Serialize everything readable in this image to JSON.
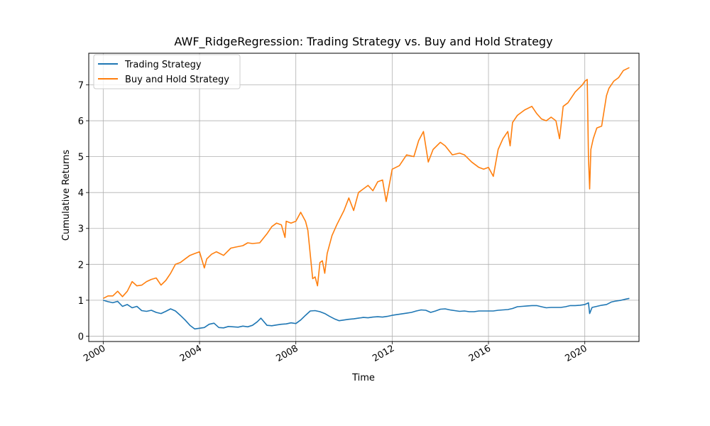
{
  "chart_data": {
    "type": "line",
    "title": "AWF_RidgeRegression: Trading Strategy vs. Buy and Hold Strategy",
    "xlabel": "Time",
    "ylabel": "Cumulative Returns",
    "xlim": [
      1999.4,
      2022.25
    ],
    "ylim": [
      -0.15,
      7.88
    ],
    "grid": true,
    "legend_position": "top-left",
    "x_ticks": [
      2000,
      2004,
      2008,
      2012,
      2016,
      2020
    ],
    "x_tick_labels": [
      "2000",
      "2004",
      "2008",
      "2012",
      "2016",
      "2020"
    ],
    "y_ticks": [
      0,
      1,
      2,
      3,
      4,
      5,
      6,
      7
    ],
    "y_tick_labels": [
      "0",
      "1",
      "2",
      "3",
      "4",
      "5",
      "6",
      "7"
    ],
    "series": [
      {
        "name": "Trading Strategy",
        "color": "#1f77b4",
        "x": [
          2000.0,
          2000.2,
          2000.4,
          2000.6,
          2000.8,
          2001.0,
          2001.2,
          2001.4,
          2001.6,
          2001.8,
          2002.0,
          2002.2,
          2002.4,
          2002.6,
          2002.8,
          2003.0,
          2003.2,
          2003.4,
          2003.6,
          2003.8,
          2004.0,
          2004.2,
          2004.4,
          2004.6,
          2004.8,
          2005.0,
          2005.2,
          2005.4,
          2005.6,
          2005.8,
          2006.0,
          2006.2,
          2006.4,
          2006.55,
          2006.8,
          2007.0,
          2007.2,
          2007.4,
          2007.6,
          2007.8,
          2008.0,
          2008.2,
          2008.4,
          2008.6,
          2008.8,
          2009.0,
          2009.2,
          2009.4,
          2009.6,
          2009.8,
          2010.0,
          2010.2,
          2010.4,
          2010.6,
          2010.8,
          2011.0,
          2011.2,
          2011.4,
          2011.6,
          2011.8,
          2012.0,
          2012.2,
          2012.4,
          2012.6,
          2012.8,
          2013.0,
          2013.2,
          2013.4,
          2013.6,
          2013.8,
          2014.0,
          2014.2,
          2014.4,
          2014.6,
          2014.8,
          2015.0,
          2015.2,
          2015.4,
          2015.6,
          2015.8,
          2016.0,
          2016.2,
          2016.4,
          2016.6,
          2016.8,
          2017.0,
          2017.2,
          2017.4,
          2017.6,
          2017.8,
          2018.0,
          2018.2,
          2018.4,
          2018.6,
          2018.8,
          2019.0,
          2019.2,
          2019.4,
          2019.6,
          2019.8,
          2020.0,
          2020.1,
          2020.15,
          2020.2,
          2020.3,
          2020.5,
          2020.7,
          2020.9,
          2021.1,
          2021.3,
          2021.5,
          2021.7,
          2021.85
        ],
        "values": [
          1.0,
          0.96,
          0.93,
          0.97,
          0.83,
          0.88,
          0.79,
          0.83,
          0.71,
          0.69,
          0.72,
          0.66,
          0.63,
          0.69,
          0.76,
          0.7,
          0.58,
          0.45,
          0.3,
          0.2,
          0.22,
          0.24,
          0.33,
          0.36,
          0.24,
          0.23,
          0.27,
          0.26,
          0.25,
          0.28,
          0.26,
          0.3,
          0.4,
          0.5,
          0.3,
          0.29,
          0.31,
          0.33,
          0.34,
          0.37,
          0.35,
          0.45,
          0.58,
          0.7,
          0.71,
          0.68,
          0.63,
          0.55,
          0.48,
          0.43,
          0.45,
          0.47,
          0.48,
          0.5,
          0.52,
          0.51,
          0.53,
          0.54,
          0.53,
          0.55,
          0.58,
          0.6,
          0.62,
          0.64,
          0.66,
          0.7,
          0.73,
          0.72,
          0.66,
          0.7,
          0.75,
          0.76,
          0.73,
          0.71,
          0.69,
          0.7,
          0.68,
          0.68,
          0.7,
          0.7,
          0.7,
          0.7,
          0.72,
          0.73,
          0.74,
          0.77,
          0.82,
          0.83,
          0.84,
          0.85,
          0.85,
          0.82,
          0.79,
          0.8,
          0.8,
          0.8,
          0.82,
          0.85,
          0.85,
          0.86,
          0.88,
          0.91,
          0.93,
          0.63,
          0.8,
          0.83,
          0.86,
          0.88,
          0.95,
          0.98,
          1.0,
          1.03,
          1.05
        ]
      },
      {
        "name": "Buy and Hold Strategy",
        "color": "#ff7f0e",
        "x": [
          2000.0,
          2000.2,
          2000.4,
          2000.6,
          2000.8,
          2001.0,
          2001.2,
          2001.4,
          2001.6,
          2001.8,
          2002.0,
          2002.2,
          2002.4,
          2002.6,
          2002.8,
          2003.0,
          2003.2,
          2003.4,
          2003.6,
          2003.8,
          2004.0,
          2004.2,
          2004.3,
          2004.5,
          2004.7,
          2005.0,
          2005.3,
          2005.5,
          2005.8,
          2006.0,
          2006.2,
          2006.5,
          2006.8,
          2007.0,
          2007.2,
          2007.4,
          2007.55,
          2007.6,
          2007.8,
          2008.0,
          2008.2,
          2008.4,
          2008.5,
          2008.7,
          2008.8,
          2008.9,
          2009.0,
          2009.1,
          2009.2,
          2009.3,
          2009.5,
          2009.7,
          2010.0,
          2010.2,
          2010.4,
          2010.6,
          2010.8,
          2011.0,
          2011.2,
          2011.4,
          2011.6,
          2011.75,
          2012.0,
          2012.3,
          2012.6,
          2012.9,
          2013.1,
          2013.3,
          2013.5,
          2013.7,
          2014.0,
          2014.2,
          2014.5,
          2014.8,
          2015.0,
          2015.3,
          2015.6,
          2015.8,
          2016.0,
          2016.2,
          2016.4,
          2016.6,
          2016.8,
          2016.9,
          2017.0,
          2017.2,
          2017.5,
          2017.8,
          2018.0,
          2018.2,
          2018.4,
          2018.6,
          2018.8,
          2018.95,
          2019.1,
          2019.3,
          2019.6,
          2019.9,
          2020.0,
          2020.1,
          2020.15,
          2020.2,
          2020.25,
          2020.35,
          2020.5,
          2020.7,
          2020.9,
          2021.0,
          2021.2,
          2021.4,
          2021.6,
          2021.85
        ],
        "values": [
          1.05,
          1.12,
          1.12,
          1.25,
          1.1,
          1.25,
          1.52,
          1.4,
          1.42,
          1.52,
          1.58,
          1.62,
          1.42,
          1.55,
          1.75,
          2.0,
          2.05,
          2.15,
          2.25,
          2.3,
          2.35,
          1.9,
          2.15,
          2.28,
          2.35,
          2.25,
          2.45,
          2.48,
          2.52,
          2.6,
          2.58,
          2.6,
          2.85,
          3.05,
          3.15,
          3.1,
          2.75,
          3.2,
          3.15,
          3.2,
          3.45,
          3.2,
          2.95,
          1.6,
          1.65,
          1.4,
          2.05,
          2.1,
          1.75,
          2.3,
          2.8,
          3.1,
          3.5,
          3.85,
          3.5,
          4.0,
          4.1,
          4.2,
          4.05,
          4.3,
          4.35,
          3.75,
          4.65,
          4.75,
          5.05,
          5.0,
          5.45,
          5.7,
          4.85,
          5.2,
          5.4,
          5.3,
          5.05,
          5.1,
          5.05,
          4.85,
          4.7,
          4.65,
          4.7,
          4.45,
          5.2,
          5.5,
          5.7,
          5.3,
          5.95,
          6.15,
          6.3,
          6.4,
          6.2,
          6.05,
          6.0,
          6.1,
          6.0,
          5.5,
          6.4,
          6.5,
          6.8,
          7.0,
          7.1,
          7.15,
          5.0,
          4.1,
          5.2,
          5.5,
          5.8,
          5.85,
          6.7,
          6.9,
          7.1,
          7.2,
          7.4,
          7.48
        ]
      }
    ]
  }
}
